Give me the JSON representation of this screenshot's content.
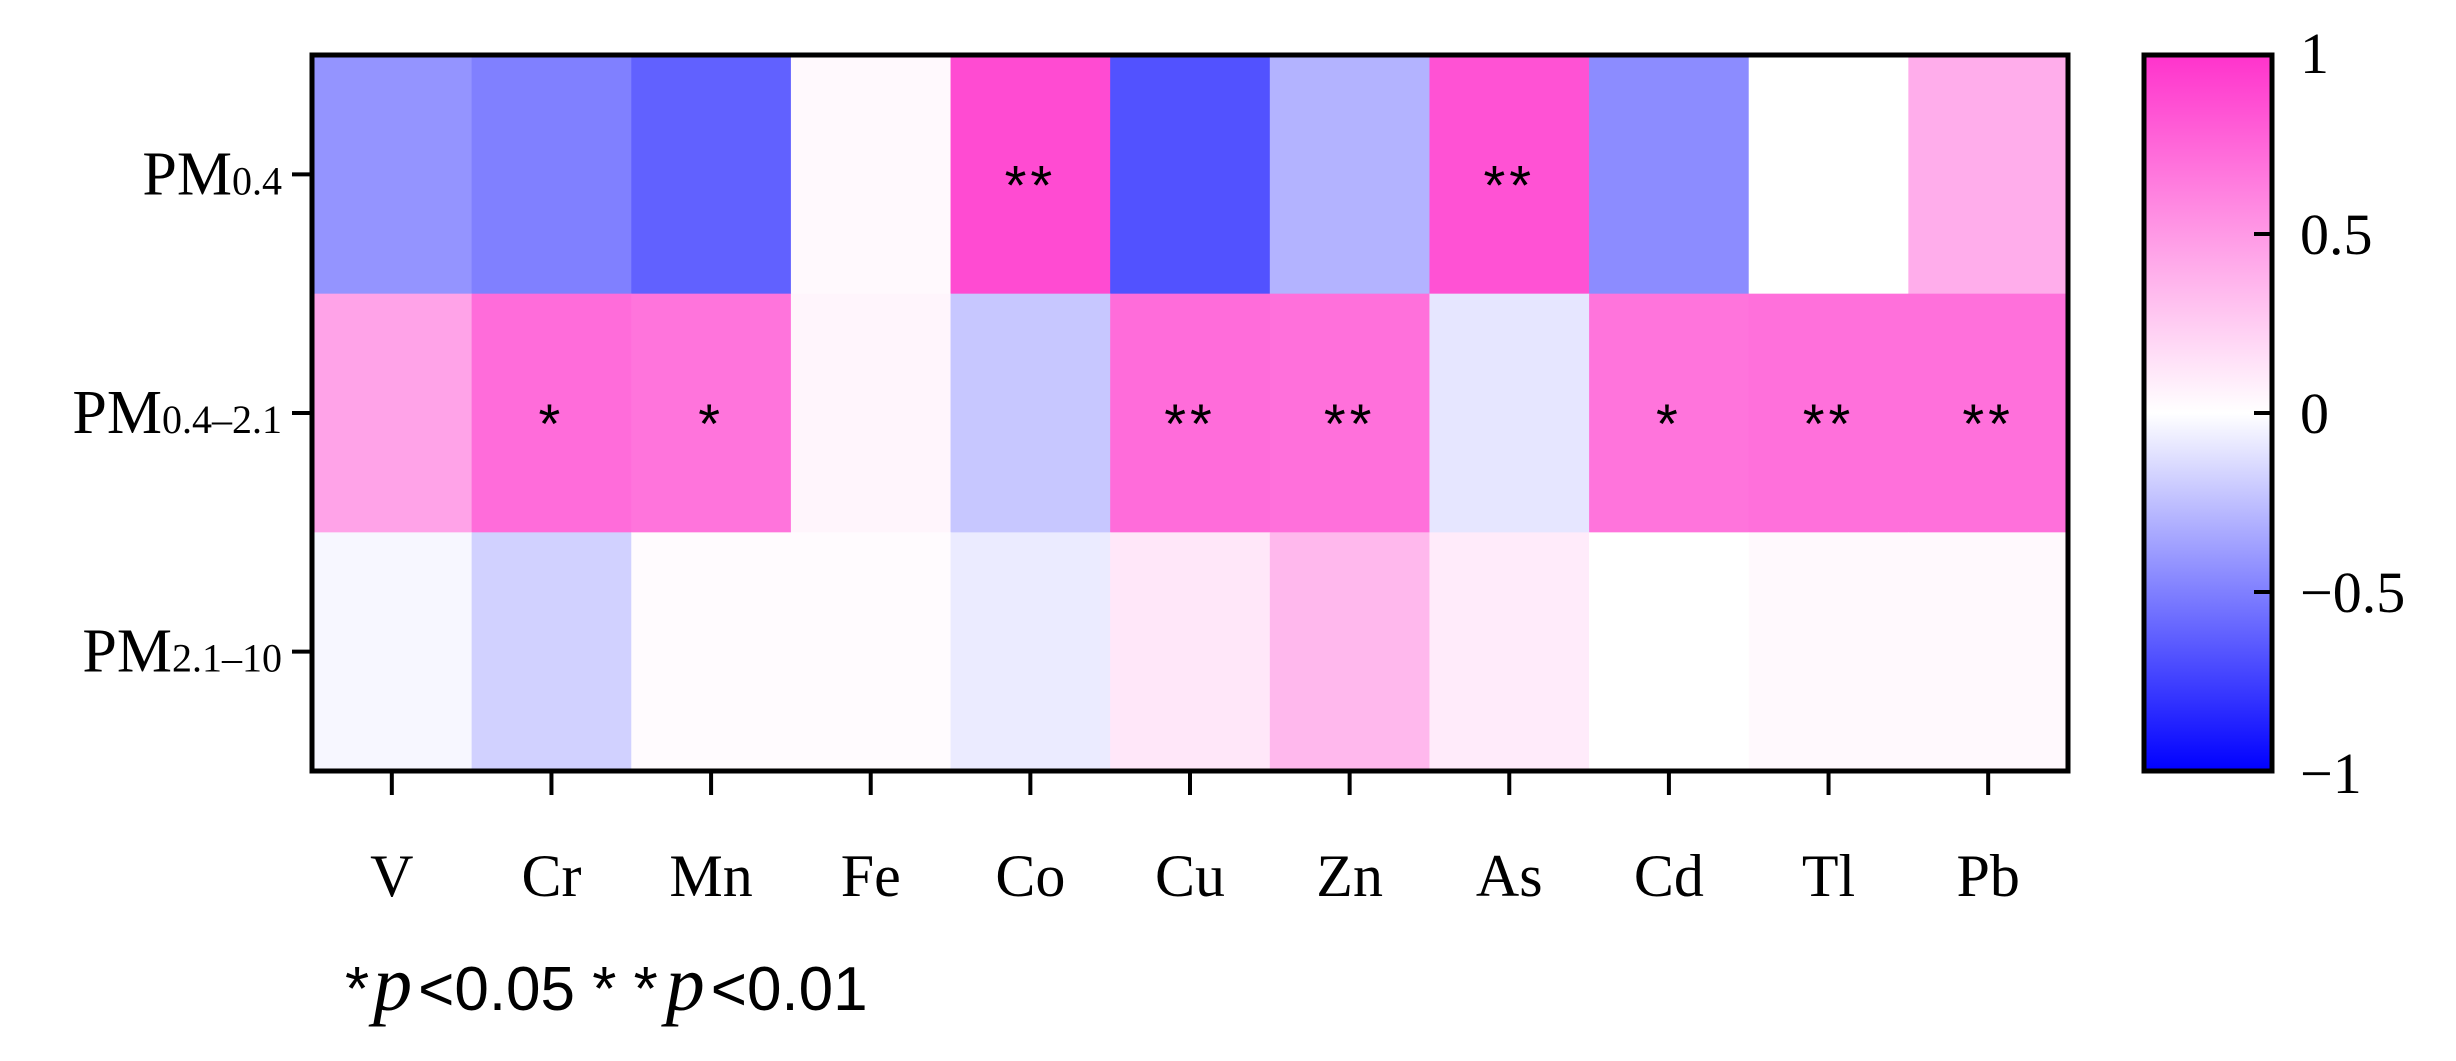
{
  "chart_data": {
    "type": "heatmap",
    "rows": [
      {
        "label": "PM0.4",
        "main": "PM",
        "sub": "0.4"
      },
      {
        "label": "PM0.4–2.1",
        "main": "PM",
        "sub": "0.4–2.1"
      },
      {
        "label": "PM2.1–10",
        "main": "PM",
        "sub": "2.1–10"
      }
    ],
    "columns": [
      "V",
      "Cr",
      "Mn",
      "Fe",
      "Co",
      "Cu",
      "Zn",
      "As",
      "Cd",
      "Tl",
      "Pb"
    ],
    "values": [
      [
        -0.42,
        -0.5,
        -0.62,
        0.03,
        0.88,
        -0.68,
        -0.3,
        0.85,
        -0.45,
        0.0,
        0.4
      ],
      [
        0.45,
        0.72,
        0.68,
        0.05,
        -0.22,
        0.72,
        0.7,
        -0.1,
        0.68,
        0.7,
        0.7
      ],
      [
        -0.03,
        -0.18,
        0.02,
        0.02,
        -0.08,
        0.12,
        0.35,
        0.1,
        0.0,
        0.03,
        0.03
      ]
    ],
    "significance": [
      [
        "",
        "",
        "",
        "",
        "**",
        "",
        "",
        "**",
        "",
        "",
        ""
      ],
      [
        "",
        "*",
        "*",
        "",
        "",
        "**",
        "**",
        "",
        "*",
        "**",
        "**"
      ],
      [
        "",
        "",
        "",
        "",
        "",
        "",
        "",
        "",
        "",
        "",
        ""
      ]
    ],
    "colorbar": {
      "range": [
        -1,
        1
      ],
      "ticks": [
        "1",
        "0.5",
        "0",
        "−0.5",
        "−1"
      ],
      "low_color": "#0000ff",
      "mid_color": "#ffffff",
      "high_color": "#ff33cc"
    },
    "legend_note": {
      "part1": "*",
      "p1": "p",
      "part2": "<0.05 * *",
      "p2": "p",
      "part3": "<0.01"
    }
  }
}
